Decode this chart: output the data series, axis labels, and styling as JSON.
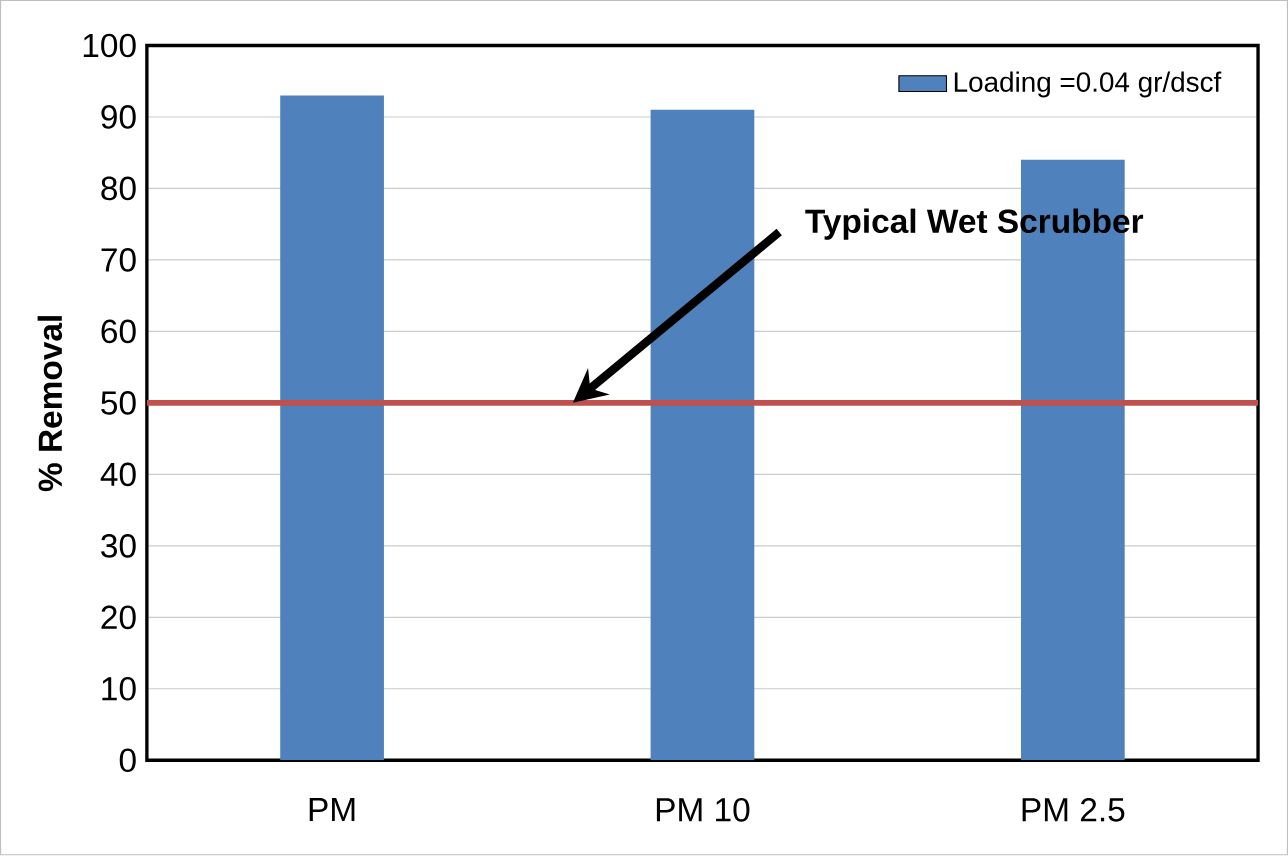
{
  "chart_data": {
    "type": "bar",
    "ylabel": "% Removal",
    "categories": [
      "PM",
      "PM 10",
      "PM 2.5"
    ],
    "series": [
      {
        "name": "Loading =0.04 gr/dscf",
        "color": "#4f81bd",
        "values": [
          93,
          91,
          84
        ]
      }
    ],
    "ylim": [
      0,
      100
    ],
    "yticks": [
      0,
      10,
      20,
      30,
      40,
      50,
      60,
      70,
      80,
      90,
      100
    ],
    "grid": "y",
    "legend": "top right",
    "ref_lines": [
      {
        "axis": "y",
        "value": 50,
        "label": "Typical Wet Scrubber",
        "color": "#c0504d"
      }
    ]
  }
}
